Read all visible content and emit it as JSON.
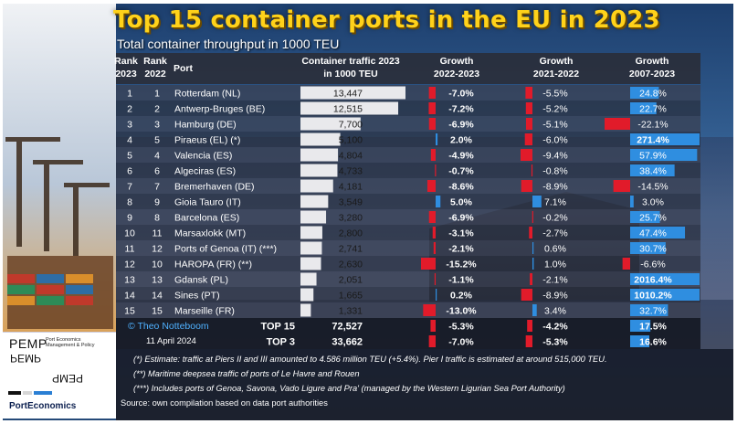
{
  "title": "Top 15 container ports in the EU in 2023",
  "subtitle": "Total container throughput in 1000 TEU",
  "headers": {
    "rank2023": [
      "Rank",
      "2023"
    ],
    "rank2022": [
      "Rank",
      "2022"
    ],
    "port": "Port",
    "traffic": [
      "Container traffic 2023",
      "in 1000 TEU"
    ],
    "g1": [
      "Growth",
      "2022-2023"
    ],
    "g2": [
      "Growth",
      "2021-2022"
    ],
    "g3": [
      "Growth",
      "2007-2023"
    ]
  },
  "chart_data": {
    "type": "table",
    "columns": [
      "Rank 2023",
      "Rank 2022",
      "Port",
      "Container traffic 2023 in 1000 TEU",
      "Growth 2022-2023",
      "Growth 2021-2022",
      "Growth 2007-2023"
    ],
    "rows": [
      {
        "rank2023": "1",
        "rank2022": "1",
        "port": "Rotterdam (NL)",
        "traffic": 13447,
        "traffic_label": "13,447",
        "g1": -7.0,
        "g1_label": "-7.0%",
        "g2": -5.5,
        "g2_label": "-5.5%",
        "g3": 24.8,
        "g3_label": "24.8%"
      },
      {
        "rank2023": "2",
        "rank2022": "2",
        "port": "Antwerp-Bruges (BE)",
        "traffic": 12515,
        "traffic_label": "12,515",
        "g1": -7.2,
        "g1_label": "-7.2%",
        "g2": -5.2,
        "g2_label": "-5.2%",
        "g3": 22.7,
        "g3_label": "22.7%"
      },
      {
        "rank2023": "3",
        "rank2022": "3",
        "port": "Hamburg (DE)",
        "traffic": 7700,
        "traffic_label": "7,700",
        "g1": -6.9,
        "g1_label": "-6.9%",
        "g2": -5.1,
        "g2_label": "-5.1%",
        "g3": -22.1,
        "g3_label": "-22.1%"
      },
      {
        "rank2023": "4",
        "rank2022": "5",
        "port": "Piraeus (EL) (*)",
        "traffic": 5100,
        "traffic_label": "5,100",
        "g1": 2.0,
        "g1_label": "2.0%",
        "g2": -6.0,
        "g2_label": "-6.0%",
        "g3": 271.4,
        "g3_label": "271.4%"
      },
      {
        "rank2023": "5",
        "rank2022": "4",
        "port": "Valencia (ES)",
        "traffic": 4804,
        "traffic_label": "4,804",
        "g1": -4.9,
        "g1_label": "-4.9%",
        "g2": -9.4,
        "g2_label": "-9.4%",
        "g3": 57.9,
        "g3_label": "57.9%"
      },
      {
        "rank2023": "6",
        "rank2022": "6",
        "port": "Algeciras (ES)",
        "traffic": 4733,
        "traffic_label": "4,733",
        "g1": -0.7,
        "g1_label": "-0.7%",
        "g2": -0.8,
        "g2_label": "-0.8%",
        "g3": 38.4,
        "g3_label": "38.4%"
      },
      {
        "rank2023": "7",
        "rank2022": "7",
        "port": "Bremerhaven (DE)",
        "traffic": 4181,
        "traffic_label": "4,181",
        "g1": -8.6,
        "g1_label": "-8.6%",
        "g2": -8.9,
        "g2_label": "-8.9%",
        "g3": -14.5,
        "g3_label": "-14.5%"
      },
      {
        "rank2023": "8",
        "rank2022": "9",
        "port": "Gioia Tauro (IT)",
        "traffic": 3549,
        "traffic_label": "3,549",
        "g1": 5.0,
        "g1_label": "5.0%",
        "g2": 7.1,
        "g2_label": "7.1%",
        "g3": 3.0,
        "g3_label": "3.0%"
      },
      {
        "rank2023": "9",
        "rank2022": "8",
        "port": "Barcelona (ES)",
        "traffic": 3280,
        "traffic_label": "3,280",
        "g1": -6.9,
        "g1_label": "-6.9%",
        "g2": -0.2,
        "g2_label": "-0.2%",
        "g3": 25.7,
        "g3_label": "25.7%"
      },
      {
        "rank2023": "10",
        "rank2022": "11",
        "port": "Marsaxlokk (MT)",
        "traffic": 2800,
        "traffic_label": "2,800",
        "g1": -3.1,
        "g1_label": "-3.1%",
        "g2": -2.7,
        "g2_label": "-2.7%",
        "g3": 47.4,
        "g3_label": "47.4%"
      },
      {
        "rank2023": "11",
        "rank2022": "12",
        "port": "Ports of Genoa (IT) (***)",
        "traffic": 2741,
        "traffic_label": "2,741",
        "g1": -2.1,
        "g1_label": "-2.1%",
        "g2": 0.6,
        "g2_label": "0.6%",
        "g3": 30.7,
        "g3_label": "30.7%"
      },
      {
        "rank2023": "12",
        "rank2022": "10",
        "port": "HAROPA (FR) (**)",
        "traffic": 2630,
        "traffic_label": "2,630",
        "g1": -15.2,
        "g1_label": "-15.2%",
        "g2": 1.0,
        "g2_label": "1.0%",
        "g3": -6.6,
        "g3_label": "-6.6%"
      },
      {
        "rank2023": "13",
        "rank2022": "13",
        "port": "Gdansk (PL)",
        "traffic": 2051,
        "traffic_label": "2,051",
        "g1": -1.1,
        "g1_label": "-1.1%",
        "g2": -2.1,
        "g2_label": "-2.1%",
        "g3": 2016.4,
        "g3_label": "2016.4%"
      },
      {
        "rank2023": "14",
        "rank2022": "14",
        "port": "Sines (PT)",
        "traffic": 1665,
        "traffic_label": "1,665",
        "g1": 0.2,
        "g1_label": "0.2%",
        "g2": -8.9,
        "g2_label": "-8.9%",
        "g3": 1010.2,
        "g3_label": "1010.2%"
      },
      {
        "rank2023": "15",
        "rank2022": "15",
        "port": "Marseille (FR)",
        "traffic": 1331,
        "traffic_label": "1,331",
        "g1": -13.0,
        "g1_label": "-13.0%",
        "g2": 3.4,
        "g2_label": "3.4%",
        "g3": 32.7,
        "g3_label": "32.7%"
      }
    ],
    "totals": [
      {
        "label": "TOP 15",
        "traffic_label": "72,527",
        "g1": -5.3,
        "g1_label": "-5.3%",
        "g2": -4.2,
        "g2_label": "-4.2%",
        "g3": 17.5,
        "g3_label": "17.5%"
      },
      {
        "label": "TOP 3",
        "traffic_label": "33,662",
        "g1": -7.0,
        "g1_label": "-7.0%",
        "g2": -5.3,
        "g2_label": "-5.3%",
        "g3": 16.6,
        "g3_label": "16.6%"
      }
    ],
    "bar_caps": {
      "g1": 15.2,
      "g2": 9.4,
      "g3": 60
    },
    "colors": {
      "traffic_bar": "#e9e9ec",
      "negative": "#e11b2a",
      "positive": "#2f8ee0"
    }
  },
  "credit": "© Theo Notteboom",
  "date": "11 April 2024",
  "notes": [
    "(*) Estimate: traffic at Piers II and III amounted to 4.586 million TEU (+5.4%). Pier I traffic is estimated at around 515,000 TEU.",
    "(**) Maritime deepsea traffic of ports of Le Havre and Rouen",
    "(***) Includes ports of Genoa, Savona, Vado Ligure and Pra' (managed by the Western Ligurian Sea Port Authority)"
  ],
  "source": "Source: own compilation based on data port authorities",
  "logo": {
    "pemp": "PEMP",
    "tagline": [
      "Port Economics",
      "Management & Policy"
    ],
    "portecon": "PortEconomics"
  }
}
